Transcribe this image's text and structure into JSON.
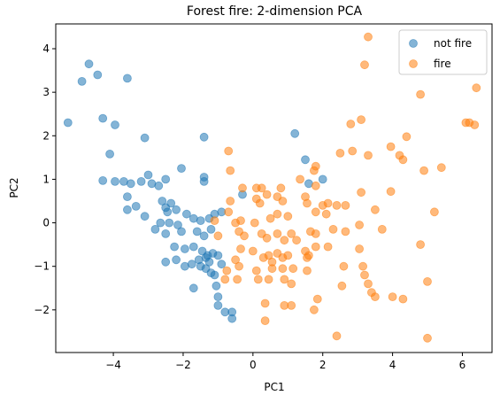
{
  "chart_data": {
    "type": "scatter",
    "title": "Forest fire: 2-dimension PCA",
    "xlabel": "PC1",
    "ylabel": "PC2",
    "xlim": [
      -5.65,
      6.85
    ],
    "ylim": [
      -2.98,
      4.57
    ],
    "xticks": [
      -4,
      -2,
      0,
      2,
      4,
      6
    ],
    "yticks": [
      -2,
      -1,
      0,
      1,
      2,
      3,
      4
    ],
    "xtick_labels": [
      "−4",
      "−2",
      "0",
      "2",
      "4",
      "6"
    ],
    "ytick_labels": [
      "−2",
      "−1",
      "0",
      "1",
      "2",
      "3",
      "4"
    ],
    "grid": false,
    "legend": "top-right",
    "marker_alpha": 0.55,
    "series": [
      {
        "name": "not fire",
        "color": "#1f77b4",
        "points": [
          [
            -5.3,
            2.3
          ],
          [
            -4.9,
            3.25
          ],
          [
            -4.7,
            3.65
          ],
          [
            -4.45,
            3.4
          ],
          [
            -3.6,
            3.32
          ],
          [
            -4.3,
            2.4
          ],
          [
            -3.95,
            2.25
          ],
          [
            -4.1,
            1.58
          ],
          [
            -3.1,
            1.95
          ],
          [
            -1.4,
            1.97
          ],
          [
            1.2,
            2.05
          ],
          [
            -4.3,
            0.97
          ],
          [
            -3.95,
            0.95
          ],
          [
            -3.7,
            0.95
          ],
          [
            -3.6,
            0.6
          ],
          [
            -3.5,
            0.9
          ],
          [
            -3.2,
            0.95
          ],
          [
            -3.0,
            1.1
          ],
          [
            -2.9,
            0.9
          ],
          [
            -2.7,
            0.85
          ],
          [
            -2.5,
            1.0
          ],
          [
            -2.05,
            1.25
          ],
          [
            -1.4,
            1.05
          ],
          [
            -1.4,
            0.95
          ],
          [
            -3.6,
            0.3
          ],
          [
            -3.35,
            0.38
          ],
          [
            -3.1,
            0.15
          ],
          [
            -2.6,
            0.5
          ],
          [
            -2.5,
            0.35
          ],
          [
            -2.45,
            0.25
          ],
          [
            -2.35,
            0.45
          ],
          [
            -2.2,
            0.3
          ],
          [
            -1.9,
            0.2
          ],
          [
            -2.65,
            0.0
          ],
          [
            -2.4,
            0.0
          ],
          [
            -2.15,
            -0.05
          ],
          [
            -1.7,
            0.1
          ],
          [
            -1.5,
            0.05
          ],
          [
            -1.25,
            0.1
          ],
          [
            -1.1,
            0.2
          ],
          [
            -0.9,
            0.25
          ],
          [
            -2.8,
            -0.15
          ],
          [
            -2.5,
            -0.25
          ],
          [
            -2.05,
            -0.2
          ],
          [
            -1.6,
            -0.2
          ],
          [
            -1.4,
            -0.3
          ],
          [
            -1.2,
            -0.15
          ],
          [
            -2.25,
            -0.55
          ],
          [
            -1.95,
            -0.6
          ],
          [
            -1.7,
            -0.55
          ],
          [
            -1.45,
            -0.65
          ],
          [
            -1.3,
            -0.75
          ],
          [
            -1.15,
            -0.7
          ],
          [
            -2.5,
            -0.9
          ],
          [
            -2.2,
            -0.85
          ],
          [
            -1.95,
            -1.0
          ],
          [
            -1.75,
            -0.95
          ],
          [
            -1.55,
            -0.85
          ],
          [
            -1.35,
            -0.8
          ],
          [
            -1.25,
            -0.9
          ],
          [
            -1.5,
            -1.0
          ],
          [
            -1.35,
            -1.05
          ],
          [
            -1.2,
            -1.15
          ],
          [
            -1.0,
            -0.75
          ],
          [
            -0.9,
            -0.95
          ],
          [
            -1.7,
            -1.5
          ],
          [
            -1.1,
            -1.2
          ],
          [
            -1.05,
            -1.45
          ],
          [
            -1.0,
            -1.7
          ],
          [
            -1.0,
            -1.9
          ],
          [
            -0.8,
            -2.05
          ],
          [
            -0.6,
            -2.05
          ],
          [
            -0.6,
            -2.2
          ],
          [
            -0.3,
            0.65
          ],
          [
            1.5,
            1.45
          ],
          [
            2.0,
            1.0
          ],
          [
            1.6,
            0.9
          ]
        ]
      },
      {
        "name": "fire",
        "color": "#ff7f0e",
        "points": [
          [
            3.3,
            4.27
          ],
          [
            3.2,
            3.63
          ],
          [
            4.8,
            2.95
          ],
          [
            6.4,
            3.1
          ],
          [
            6.1,
            2.3
          ],
          [
            6.2,
            2.3
          ],
          [
            6.35,
            2.25
          ],
          [
            3.1,
            2.37
          ],
          [
            2.8,
            2.27
          ],
          [
            4.4,
            1.98
          ],
          [
            3.95,
            1.75
          ],
          [
            4.2,
            1.55
          ],
          [
            2.85,
            1.65
          ],
          [
            3.3,
            1.55
          ],
          [
            2.5,
            1.6
          ],
          [
            4.3,
            1.45
          ],
          [
            5.4,
            1.27
          ],
          [
            4.9,
            1.2
          ],
          [
            1.8,
            1.3
          ],
          [
            1.75,
            1.2
          ],
          [
            1.35,
            1.0
          ],
          [
            1.8,
            0.85
          ],
          [
            1.5,
            0.6
          ],
          [
            3.1,
            0.7
          ],
          [
            3.95,
            0.72
          ],
          [
            -0.7,
            1.65
          ],
          [
            -0.65,
            1.2
          ],
          [
            -0.3,
            0.8
          ],
          [
            0.1,
            0.8
          ],
          [
            0.25,
            0.8
          ],
          [
            0.8,
            0.8
          ],
          [
            0.4,
            0.65
          ],
          [
            0.7,
            0.6
          ],
          [
            -0.65,
            0.5
          ],
          [
            0.1,
            0.55
          ],
          [
            0.2,
            0.45
          ],
          [
            0.85,
            0.5
          ],
          [
            1.55,
            0.45
          ],
          [
            2.0,
            0.4
          ],
          [
            2.15,
            0.45
          ],
          [
            2.4,
            0.4
          ],
          [
            2.65,
            0.4
          ],
          [
            3.5,
            0.3
          ],
          [
            5.2,
            0.25
          ],
          [
            1.8,
            0.25
          ],
          [
            2.1,
            0.2
          ],
          [
            0.7,
            0.2
          ],
          [
            1.0,
            0.15
          ],
          [
            -0.7,
            0.25
          ],
          [
            -1.1,
            0.05
          ],
          [
            -1.0,
            -0.3
          ],
          [
            -0.5,
            0.0
          ],
          [
            -0.4,
            -0.2
          ],
          [
            -0.35,
            0.05
          ],
          [
            0.05,
            0.0
          ],
          [
            0.5,
            0.1
          ],
          [
            0.7,
            -0.25
          ],
          [
            1.1,
            -0.25
          ],
          [
            1.65,
            -0.2
          ],
          [
            1.8,
            -0.25
          ],
          [
            2.3,
            -0.15
          ],
          [
            2.65,
            -0.2
          ],
          [
            3.05,
            -0.05
          ],
          [
            3.7,
            -0.15
          ],
          [
            -0.25,
            -0.3
          ],
          [
            0.25,
            -0.25
          ],
          [
            0.4,
            -0.35
          ],
          [
            0.9,
            -0.4
          ],
          [
            1.25,
            -0.4
          ],
          [
            1.8,
            -0.55
          ],
          [
            2.15,
            -0.55
          ],
          [
            -0.35,
            -0.6
          ],
          [
            0.0,
            -0.65
          ],
          [
            0.45,
            -0.75
          ],
          [
            0.7,
            -0.7
          ],
          [
            1.0,
            -0.75
          ],
          [
            1.5,
            -0.65
          ],
          [
            1.6,
            -0.75
          ],
          [
            3.05,
            -0.6
          ],
          [
            4.8,
            -0.5
          ],
          [
            -0.5,
            -0.85
          ],
          [
            0.3,
            -0.8
          ],
          [
            0.55,
            -0.9
          ],
          [
            0.85,
            -0.8
          ],
          [
            1.55,
            -0.8
          ],
          [
            2.6,
            -1.0
          ],
          [
            3.15,
            -1.0
          ],
          [
            3.2,
            -1.2
          ],
          [
            -0.75,
            -1.1
          ],
          [
            -0.4,
            -1.0
          ],
          [
            0.1,
            -1.1
          ],
          [
            0.55,
            -1.05
          ],
          [
            0.85,
            -1.05
          ],
          [
            1.15,
            -1.05
          ],
          [
            1.55,
            -1.1
          ],
          [
            -0.8,
            -1.3
          ],
          [
            -0.45,
            -1.3
          ],
          [
            0.15,
            -1.3
          ],
          [
            0.45,
            -1.3
          ],
          [
            0.9,
            -1.3
          ],
          [
            1.1,
            -1.4
          ],
          [
            2.55,
            -1.45
          ],
          [
            3.3,
            -1.4
          ],
          [
            5.0,
            -1.35
          ],
          [
            3.5,
            -1.7
          ],
          [
            4.0,
            -1.7
          ],
          [
            4.3,
            -1.75
          ],
          [
            1.85,
            -1.75
          ],
          [
            0.35,
            -1.85
          ],
          [
            0.9,
            -1.9
          ],
          [
            1.1,
            -1.9
          ],
          [
            1.75,
            -2.0
          ],
          [
            3.4,
            -1.6
          ],
          [
            0.35,
            -2.25
          ],
          [
            2.4,
            -2.6
          ],
          [
            5.0,
            -2.65
          ]
        ]
      }
    ]
  }
}
